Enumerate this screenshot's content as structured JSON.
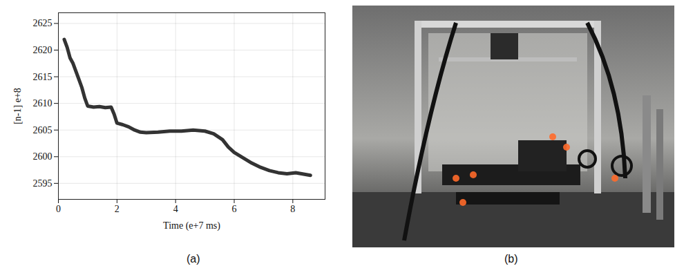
{
  "chart_data": {
    "type": "line",
    "x_label": "Time (e+7 ms)",
    "y_label": "[n-1] e+8",
    "x": [
      0.2,
      0.3,
      0.4,
      0.5,
      0.6,
      0.7,
      0.8,
      0.9,
      1.0,
      1.2,
      1.4,
      1.6,
      1.8,
      1.9,
      2.0,
      2.2,
      2.4,
      2.6,
      2.8,
      3.0,
      3.4,
      3.8,
      4.2,
      4.6,
      5.0,
      5.3,
      5.6,
      5.8,
      6.0,
      6.3,
      6.6,
      6.9,
      7.2,
      7.5,
      7.8,
      8.1,
      8.4,
      8.6
    ],
    "values": [
      2622,
      2620.5,
      2618.5,
      2617.5,
      2616,
      2614.5,
      2613,
      2611,
      2609.5,
      2609.3,
      2609.4,
      2609.2,
      2609.3,
      2608,
      2606.3,
      2606,
      2605.6,
      2605,
      2604.6,
      2604.5,
      2604.6,
      2604.8,
      2604.8,
      2605,
      2604.8,
      2604.3,
      2603.2,
      2601.8,
      2600.8,
      2599.8,
      2598.8,
      2598,
      2597.4,
      2597,
      2596.8,
      2597,
      2596.7,
      2596.5
    ],
    "color": "#333333",
    "xlim": [
      0,
      9.1
    ],
    "xticks": [
      0,
      2,
      4,
      6,
      8
    ],
    "ylim": [
      2592,
      2627
    ],
    "yticks": [
      2595,
      2600,
      2605,
      2610,
      2615,
      2620,
      2625
    ],
    "grid": true
  },
  "figure": {
    "labels": [
      "(a)",
      "(b)"
    ]
  }
}
